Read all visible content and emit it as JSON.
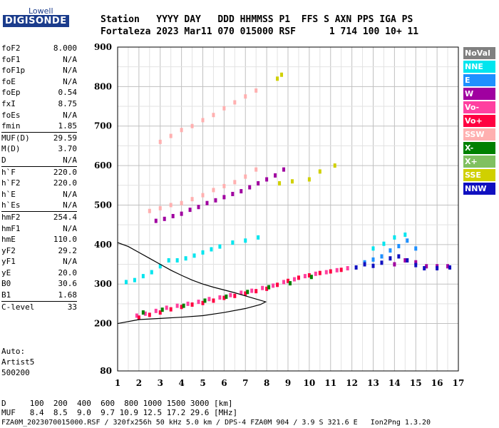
{
  "logo": {
    "top": "Lowell",
    "bottom": "DIGISONDE"
  },
  "header": {
    "line1": "Station   YYYY DAY   DDD HHMMSS P1  FFS S AXN PPS IGA PS",
    "line2": "Fortaleza 2023 Mar11 070 015000 RSF      1 714 100 10+ 11"
  },
  "params": [
    {
      "k": "foF2",
      "v": "8.000"
    },
    {
      "k": "foF1",
      "v": "N/A"
    },
    {
      "k": "foF1p",
      "v": "N/A"
    },
    {
      "k": "foE",
      "v": "N/A"
    },
    {
      "k": "foEp",
      "v": "0.54"
    },
    {
      "k": "fxI",
      "v": "8.75"
    },
    {
      "k": "foEs",
      "v": "N/A"
    },
    {
      "k": "fmin",
      "v": "1.85"
    },
    {
      "k": "MUF(D)",
      "v": "29.59",
      "sep": true
    },
    {
      "k": "M(D)",
      "v": "3.70"
    },
    {
      "k": "D",
      "v": "N/A"
    },
    {
      "k": "h`F",
      "v": "220.0",
      "sep": true
    },
    {
      "k": "h`F2",
      "v": "220.0"
    },
    {
      "k": "h`E",
      "v": "N/A"
    },
    {
      "k": "h`Es",
      "v": "N/A"
    },
    {
      "k": "hmF2",
      "v": "254.4",
      "sep": true
    },
    {
      "k": "hmF1",
      "v": "N/A"
    },
    {
      "k": "hmE",
      "v": "110.0"
    },
    {
      "k": "yF2",
      "v": "29.2"
    },
    {
      "k": "yF1",
      "v": "N/A"
    },
    {
      "k": "yE",
      "v": "20.0"
    },
    {
      "k": "B0",
      "v": "30.6"
    },
    {
      "k": "B1",
      "v": "1.68"
    },
    {
      "k": "C-level",
      "v": "33",
      "sep": true
    }
  ],
  "extra": {
    "auto": "Auto:",
    "artist": "Artist5",
    "version": "500200"
  },
  "legend": [
    {
      "label": "NoVal",
      "color": "#808080"
    },
    {
      "label": "NNE",
      "color": "#00e5ee"
    },
    {
      "label": "E",
      "color": "#1e90ff"
    },
    {
      "label": "W",
      "color": "#a000a0"
    },
    {
      "label": "Vo-",
      "color": "#ff40a0"
    },
    {
      "label": "Vo+",
      "color": "#ff0040"
    },
    {
      "label": "SSW",
      "color": "#ffb0b0"
    },
    {
      "label": "X-",
      "color": "#008000"
    },
    {
      "label": "X+",
      "color": "#80c060"
    },
    {
      "label": "SSE",
      "color": "#d0d000"
    },
    {
      "label": "NNW",
      "color": "#1010c0"
    }
  ],
  "bottom": {
    "line1": "D     100  200  400  600  800 1000 1500 3000 [km]",
    "line2": "MUF   8.4  8.5  9.0  9.7 10.9 12.5 17.2 29.6 [MHz]",
    "line3": "FZA0M_2023070015000.RSF / 320fx256h 50 kHz 5.0 km / DPS-4 FZA0M 904 / 3.9 S 321.6 E   Ion2Png 1.3.20"
  },
  "chart_data": {
    "type": "scatter",
    "title": "",
    "xlabel": "",
    "ylabel": "",
    "xlim": [
      1,
      17
    ],
    "ylim": [
      80,
      900
    ],
    "xticks": [
      1,
      2,
      3,
      4,
      5,
      6,
      7,
      8,
      9,
      10,
      11,
      12,
      13,
      14,
      15,
      16,
      17
    ],
    "yticks": [
      80,
      200,
      300,
      400,
      500,
      600,
      700,
      800,
      900
    ],
    "grid": true,
    "legend_position": "right",
    "series": [
      {
        "name": "Vo-",
        "color": "#ff40a0",
        "points": [
          [
            1.9,
            220
          ],
          [
            2.3,
            225
          ],
          [
            2.8,
            232
          ],
          [
            3.3,
            240
          ],
          [
            3.8,
            245
          ],
          [
            4.3,
            250
          ],
          [
            4.8,
            255
          ],
          [
            5.3,
            262
          ],
          [
            5.8,
            266
          ],
          [
            6.3,
            272
          ],
          [
            6.8,
            278
          ],
          [
            7.3,
            283
          ],
          [
            7.8,
            290
          ],
          [
            8.3,
            296
          ],
          [
            8.8,
            305
          ],
          [
            9.3,
            312
          ],
          [
            9.8,
            320
          ],
          [
            10.3,
            326
          ],
          [
            10.8,
            330
          ],
          [
            11.3,
            335
          ],
          [
            11.8,
            340
          ]
        ]
      },
      {
        "name": "Vo+",
        "color": "#ff0040",
        "points": [
          [
            2.0,
            215
          ],
          [
            2.5,
            222
          ],
          [
            3.0,
            228
          ],
          [
            3.5,
            236
          ],
          [
            4.0,
            242
          ],
          [
            4.5,
            248
          ],
          [
            5.0,
            252
          ],
          [
            5.5,
            258
          ],
          [
            6.0,
            265
          ],
          [
            6.5,
            270
          ],
          [
            7.0,
            276
          ],
          [
            7.5,
            282
          ],
          [
            8.0,
            288
          ],
          [
            8.5,
            298
          ],
          [
            9.0,
            308
          ],
          [
            9.5,
            316
          ],
          [
            10.0,
            322
          ],
          [
            10.5,
            328
          ],
          [
            11.0,
            332
          ],
          [
            11.5,
            336
          ]
        ]
      },
      {
        "name": "X-",
        "color": "#008000",
        "points": [
          [
            2.2,
            228
          ],
          [
            3.1,
            235
          ],
          [
            4.1,
            245
          ],
          [
            5.1,
            258
          ],
          [
            6.1,
            268
          ],
          [
            7.1,
            280
          ],
          [
            8.1,
            292
          ],
          [
            9.1,
            302
          ],
          [
            10.1,
            318
          ]
        ]
      },
      {
        "name": "NNE",
        "color": "#00e5ee",
        "points": [
          [
            1.4,
            305
          ],
          [
            1.8,
            310
          ],
          [
            2.2,
            320
          ],
          [
            2.6,
            330
          ],
          [
            3.0,
            345
          ],
          [
            3.4,
            360
          ],
          [
            3.8,
            360
          ],
          [
            4.2,
            365
          ],
          [
            4.6,
            372
          ],
          [
            5.0,
            380
          ],
          [
            5.4,
            388
          ],
          [
            5.8,
            395
          ],
          [
            6.4,
            405
          ],
          [
            7.0,
            410
          ],
          [
            7.6,
            418
          ],
          [
            13.0,
            390
          ],
          [
            13.5,
            402
          ],
          [
            14.0,
            418
          ],
          [
            14.5,
            425
          ]
        ]
      },
      {
        "name": "E",
        "color": "#1e90ff",
        "points": [
          [
            12.6,
            355
          ],
          [
            13.0,
            362
          ],
          [
            13.4,
            370
          ],
          [
            13.8,
            385
          ],
          [
            14.2,
            396
          ],
          [
            14.6,
            410
          ],
          [
            15.0,
            390
          ]
        ]
      },
      {
        "name": "W",
        "color": "#a000a0",
        "points": [
          [
            2.8,
            460
          ],
          [
            3.2,
            465
          ],
          [
            3.6,
            472
          ],
          [
            4.0,
            478
          ],
          [
            4.4,
            488
          ],
          [
            4.8,
            495
          ],
          [
            5.2,
            505
          ],
          [
            5.6,
            512
          ],
          [
            6.0,
            520
          ],
          [
            6.4,
            528
          ],
          [
            6.8,
            535
          ],
          [
            7.2,
            545
          ],
          [
            7.6,
            555
          ],
          [
            8.0,
            565
          ],
          [
            8.4,
            575
          ],
          [
            8.8,
            590
          ],
          [
            14.0,
            350
          ],
          [
            14.5,
            360
          ],
          [
            15.0,
            355
          ],
          [
            15.5,
            345
          ],
          [
            16.0,
            345
          ],
          [
            16.5,
            345
          ]
        ]
      },
      {
        "name": "SSW",
        "color": "#ffb0b0",
        "points": [
          [
            2.5,
            485
          ],
          [
            3.0,
            492
          ],
          [
            3.5,
            500
          ],
          [
            4.0,
            505
          ],
          [
            4.5,
            515
          ],
          [
            5.0,
            525
          ],
          [
            5.5,
            538
          ],
          [
            6.0,
            548
          ],
          [
            6.5,
            558
          ],
          [
            7.0,
            572
          ],
          [
            7.5,
            590
          ],
          [
            3.0,
            660
          ],
          [
            3.5,
            675
          ],
          [
            4.0,
            690
          ],
          [
            4.5,
            700
          ],
          [
            5.0,
            715
          ],
          [
            5.5,
            728
          ],
          [
            6.0,
            745
          ],
          [
            6.5,
            760
          ],
          [
            7.0,
            775
          ],
          [
            7.5,
            790
          ]
        ]
      },
      {
        "name": "SSE",
        "color": "#d0d000",
        "points": [
          [
            8.6,
            555
          ],
          [
            9.2,
            560
          ],
          [
            10.0,
            565
          ],
          [
            10.5,
            585
          ],
          [
            11.2,
            600
          ],
          [
            8.5,
            820
          ],
          [
            8.7,
            830
          ]
        ]
      },
      {
        "name": "NNW",
        "color": "#1010c0",
        "points": [
          [
            12.2,
            342
          ],
          [
            12.6,
            350
          ],
          [
            13.0,
            346
          ],
          [
            13.4,
            354
          ],
          [
            13.8,
            365
          ],
          [
            14.2,
            370
          ],
          [
            14.6,
            360
          ],
          [
            15.0,
            348
          ],
          [
            15.4,
            340
          ],
          [
            16.0,
            340
          ],
          [
            16.6,
            342
          ]
        ]
      }
    ],
    "profile": {
      "color": "#000000",
      "points": [
        [
          1.0,
          200
        ],
        [
          2.0,
          210
        ],
        [
          3.0,
          213
        ],
        [
          4.0,
          216
        ],
        [
          5.0,
          220
        ],
        [
          6.0,
          228
        ],
        [
          7.0,
          238
        ],
        [
          7.7,
          248
        ],
        [
          7.95,
          255
        ],
        [
          7.5,
          262
        ],
        [
          7.0,
          270
        ],
        [
          6.5,
          278
        ],
        [
          6.0,
          285
        ],
        [
          5.5,
          292
        ],
        [
          5.0,
          300
        ],
        [
          4.5,
          310
        ],
        [
          4.0,
          322
        ],
        [
          3.5,
          335
        ],
        [
          3.0,
          350
        ],
        [
          2.5,
          365
        ],
        [
          2.0,
          380
        ],
        [
          1.5,
          395
        ],
        [
          1.0,
          405
        ]
      ]
    }
  }
}
